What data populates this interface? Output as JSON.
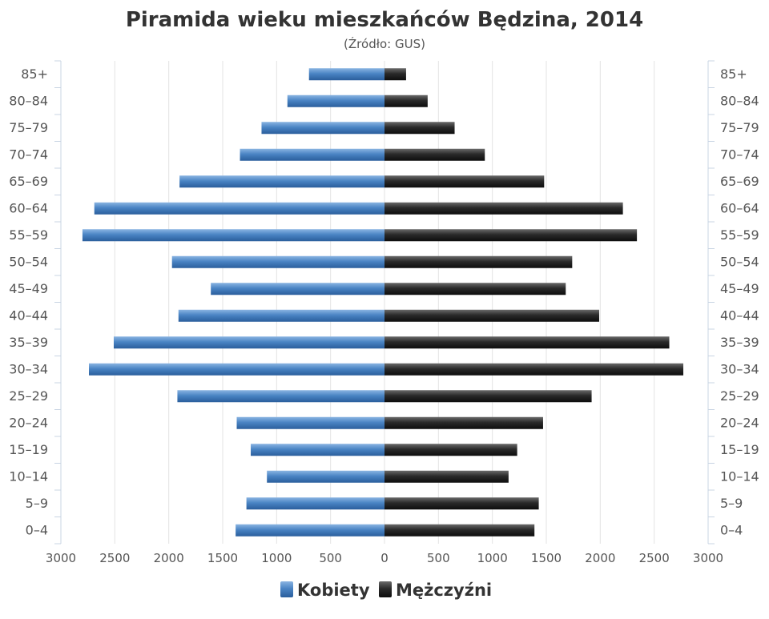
{
  "chart_data": {
    "type": "bar",
    "title": "Piramida wieku mieszkańców Będzina, 2014",
    "subtitle": "(Źródło: GUS)",
    "categories": [
      "85+",
      "80–84",
      "75–79",
      "70–74",
      "65–69",
      "60–64",
      "55–59",
      "50–54",
      "45–49",
      "40–44",
      "35–39",
      "30–34",
      "25–29",
      "20–24",
      "15–19",
      "10–14",
      "5–9",
      "0–4"
    ],
    "series": [
      {
        "name": "Kobiety",
        "color": "#4a84c4",
        "values": [
          700,
          900,
          1140,
          1340,
          1900,
          2690,
          2800,
          1970,
          1610,
          1910,
          2510,
          2740,
          1920,
          1370,
          1240,
          1090,
          1280,
          1380
        ]
      },
      {
        "name": "Mężczyźni",
        "color": "#2a2a2a",
        "values": [
          200,
          400,
          650,
          930,
          1480,
          2210,
          2340,
          1740,
          1680,
          1990,
          2640,
          2770,
          1920,
          1470,
          1230,
          1150,
          1430,
          1390
        ]
      }
    ],
    "xlim": [
      -3000,
      3000
    ],
    "x_ticks": [
      "3000",
      "2500",
      "2000",
      "1500",
      "1000",
      "500",
      "0",
      "500",
      "1000",
      "1500",
      "2000",
      "2500",
      "3000"
    ],
    "grid": true,
    "legend_position": "bottom-center"
  }
}
